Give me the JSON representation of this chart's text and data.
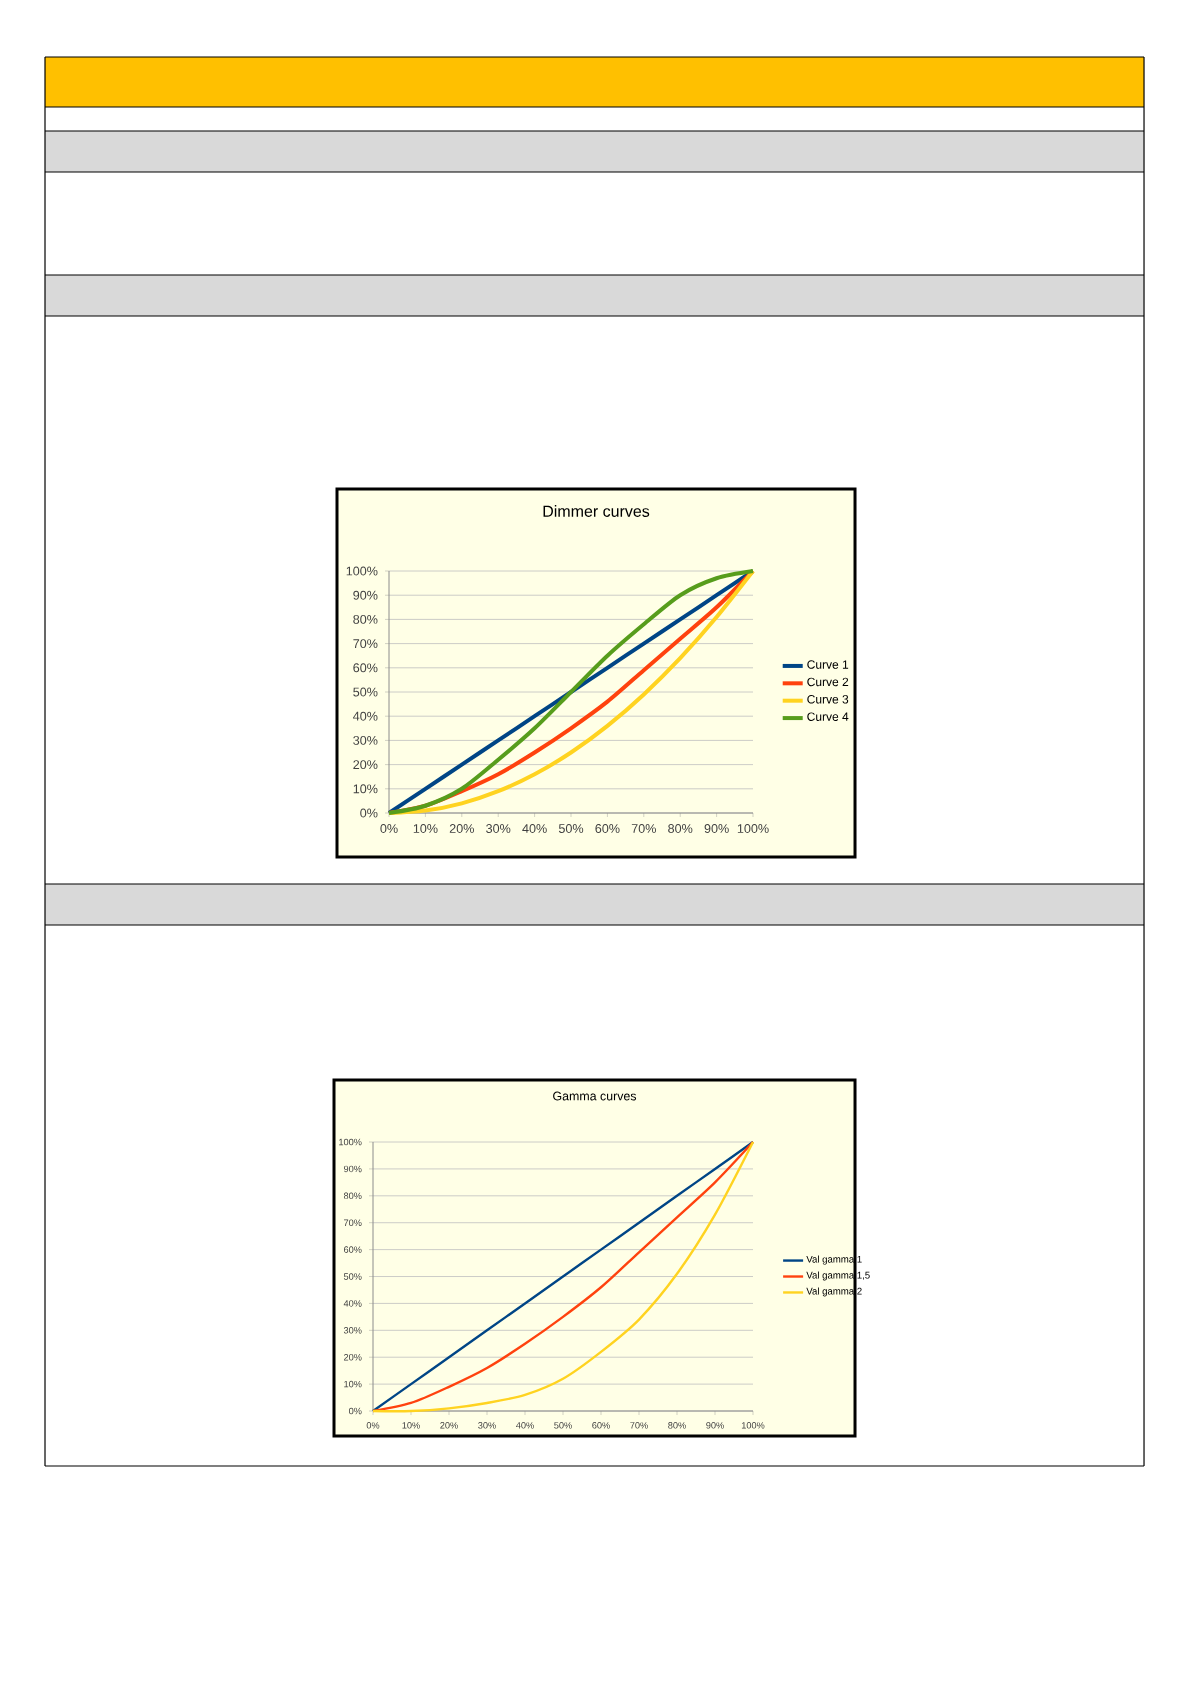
{
  "chart_data": [
    {
      "type": "line",
      "title": "Dimmer curves",
      "x": [
        0,
        10,
        20,
        30,
        40,
        50,
        60,
        70,
        80,
        90,
        100
      ],
      "xlim": [
        0,
        100
      ],
      "ylim": [
        0,
        100
      ],
      "xticks": [
        {
          "value": 0,
          "label": "0%"
        },
        {
          "value": 10,
          "label": "10%"
        },
        {
          "value": 20,
          "label": "20%"
        },
        {
          "value": 30,
          "label": "30%"
        },
        {
          "value": 40,
          "label": "40%"
        },
        {
          "value": 50,
          "label": "50%"
        },
        {
          "value": 60,
          "label": "60%"
        },
        {
          "value": 70,
          "label": "70%"
        },
        {
          "value": 80,
          "label": "80%"
        },
        {
          "value": 90,
          "label": "90%"
        },
        {
          "value": 100,
          "label": "100%"
        }
      ],
      "yticks": [
        {
          "value": 0,
          "label": "0%"
        },
        {
          "value": 10,
          "label": "10%"
        },
        {
          "value": 20,
          "label": "20%"
        },
        {
          "value": 30,
          "label": "30%"
        },
        {
          "value": 40,
          "label": "40%"
        },
        {
          "value": 50,
          "label": "50%"
        },
        {
          "value": 60,
          "label": "60%"
        },
        {
          "value": 70,
          "label": "70%"
        },
        {
          "value": 80,
          "label": "80%"
        },
        {
          "value": 90,
          "label": "90%"
        },
        {
          "value": 100,
          "label": "100%"
        }
      ],
      "grid": "y",
      "legend": "right",
      "series": [
        {
          "name": "Curve 1",
          "color": "#004586",
          "values": [
            0,
            10,
            20,
            30,
            40,
            50,
            60,
            70,
            80,
            90,
            100
          ]
        },
        {
          "name": "Curve 2",
          "color": "#ff420e",
          "values": [
            0,
            3,
            9,
            16,
            25,
            35,
            46,
            59,
            72,
            85,
            100
          ]
        },
        {
          "name": "Curve 3",
          "color": "#ffd320",
          "values": [
            0,
            1,
            4,
            9,
            16,
            25,
            36,
            49,
            64,
            81,
            100
          ]
        },
        {
          "name": "Curve 4",
          "color": "#579d1c",
          "values": [
            0,
            3,
            10,
            22,
            35,
            50,
            65,
            78,
            90,
            97,
            100
          ]
        }
      ]
    },
    {
      "type": "line",
      "title": "Gamma curves",
      "x": [
        0,
        10,
        20,
        30,
        40,
        50,
        60,
        70,
        80,
        90,
        100
      ],
      "xlim": [
        0,
        100
      ],
      "ylim": [
        0,
        100
      ],
      "xticks": [
        {
          "value": 0,
          "label": "0%"
        },
        {
          "value": 10,
          "label": "10%"
        },
        {
          "value": 20,
          "label": "20%"
        },
        {
          "value": 30,
          "label": "30%"
        },
        {
          "value": 40,
          "label": "40%"
        },
        {
          "value": 50,
          "label": "50%"
        },
        {
          "value": 60,
          "label": "60%"
        },
        {
          "value": 70,
          "label": "70%"
        },
        {
          "value": 80,
          "label": "80%"
        },
        {
          "value": 90,
          "label": "90%"
        },
        {
          "value": 100,
          "label": "100%"
        }
      ],
      "yticks": [
        {
          "value": 0,
          "label": "0%"
        },
        {
          "value": 10,
          "label": "10%"
        },
        {
          "value": 20,
          "label": "20%"
        },
        {
          "value": 30,
          "label": "30%"
        },
        {
          "value": 40,
          "label": "40%"
        },
        {
          "value": 50,
          "label": "50%"
        },
        {
          "value": 60,
          "label": "60%"
        },
        {
          "value": 70,
          "label": "70%"
        },
        {
          "value": 80,
          "label": "80%"
        },
        {
          "value": 90,
          "label": "90%"
        },
        {
          "value": 100,
          "label": "100%"
        }
      ],
      "grid": "y",
      "legend": "right",
      "series": [
        {
          "name": "Val gamma 1",
          "color": "#004586",
          "values": [
            0,
            10,
            20,
            30,
            40,
            50,
            60,
            70,
            80,
            90,
            100
          ]
        },
        {
          "name": "Val gamma 1,5",
          "color": "#ff420e",
          "values": [
            0,
            3,
            9,
            16,
            25,
            35,
            46,
            59,
            72,
            85,
            100
          ]
        },
        {
          "name": "Val gamma 2",
          "color": "#ffd320",
          "values": [
            0,
            0,
            1,
            3,
            6,
            12,
            22,
            34,
            51,
            73,
            100
          ]
        }
      ]
    }
  ]
}
